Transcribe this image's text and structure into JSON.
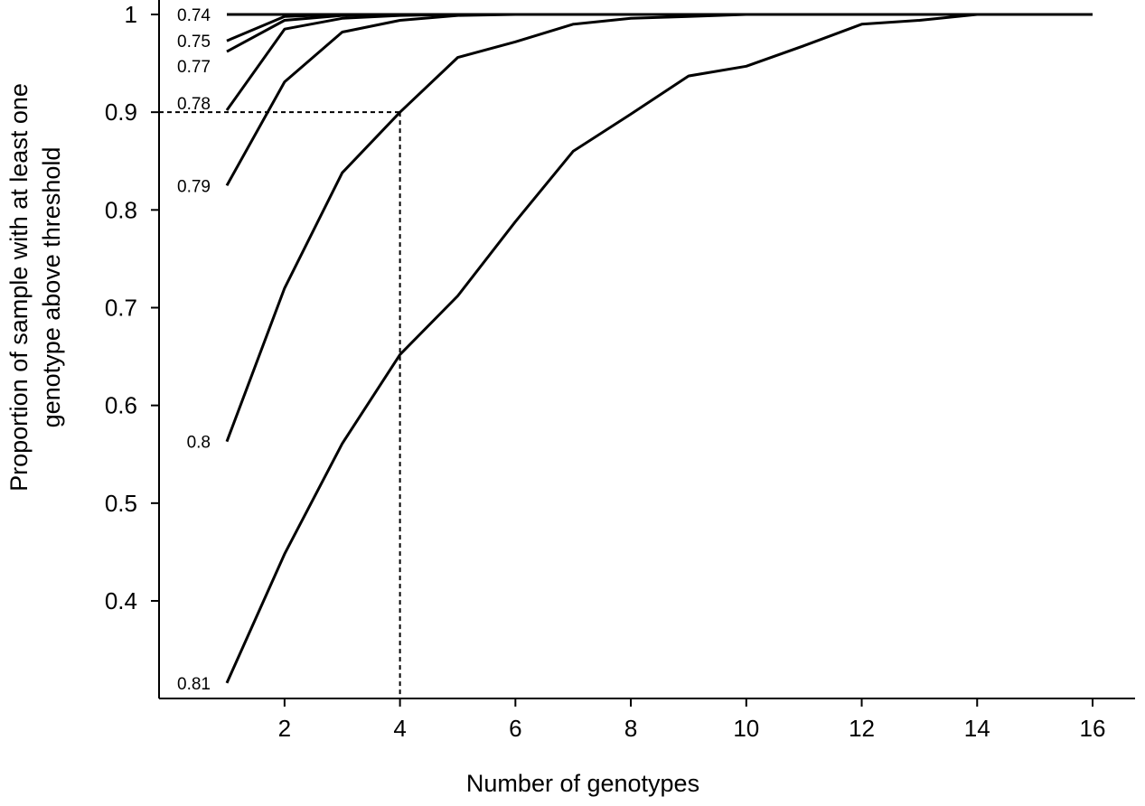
{
  "chart_data": {
    "type": "line",
    "title": "",
    "xlabel": "Number of genotypes",
    "ylabel_line1": "Proportion of sample with at least one",
    "ylabel_line2": "genotype above threshold",
    "xlim": [
      0,
      16.7
    ],
    "ylim": [
      0.3,
      1.0
    ],
    "x_ticks": [
      2,
      4,
      6,
      8,
      10,
      12,
      14,
      16
    ],
    "x_tick_labels": [
      "2",
      "4",
      "6",
      "8",
      "10",
      "12",
      "14",
      "16"
    ],
    "y_ticks": [
      0.4,
      0.5,
      0.6,
      0.7,
      0.8,
      0.9,
      1.0
    ],
    "y_tick_labels": [
      "0.4",
      "0.5",
      "0.6",
      "0.7",
      "0.8",
      "0.9",
      "1"
    ],
    "grid": false,
    "legend": "none",
    "series": [
      {
        "name": "0.74",
        "x": [
          1,
          16
        ],
        "values": [
          1.0,
          1.0
        ]
      },
      {
        "name": "0.75",
        "x": [
          1,
          2,
          3,
          16
        ],
        "values": [
          0.973,
          0.998,
          1.0,
          1.0
        ]
      },
      {
        "name": "0.77",
        "x": [
          1,
          2,
          3,
          4,
          16
        ],
        "values": [
          0.962,
          0.994,
          0.999,
          1.0,
          1.0
        ]
      },
      {
        "name": "0.78",
        "x": [
          1,
          2,
          3,
          4,
          5,
          16
        ],
        "values": [
          0.902,
          0.985,
          0.996,
          0.999,
          1.0,
          1.0
        ]
      },
      {
        "name": "0.79",
        "x": [
          1,
          2,
          3,
          4,
          5,
          6,
          16
        ],
        "values": [
          0.825,
          0.931,
          0.982,
          0.994,
          0.999,
          1.0,
          1.0
        ]
      },
      {
        "name": "0.8",
        "x": [
          1,
          2,
          3,
          4,
          5,
          6,
          7,
          8,
          9,
          10,
          16
        ],
        "values": [
          0.563,
          0.72,
          0.838,
          0.9,
          0.956,
          0.972,
          0.99,
          0.996,
          0.998,
          1.0,
          1.0
        ]
      },
      {
        "name": "0.81",
        "x": [
          1,
          2,
          3,
          4,
          5,
          6,
          7,
          8,
          9,
          10,
          11,
          12,
          13,
          14,
          16
        ],
        "values": [
          0.316,
          0.448,
          0.561,
          0.652,
          0.712,
          0.788,
          0.86,
          0.898,
          0.937,
          0.947,
          0.968,
          0.99,
          0.994,
          1.0,
          1.0
        ]
      }
    ],
    "reference": {
      "x": 4,
      "y": 0.9
    }
  }
}
